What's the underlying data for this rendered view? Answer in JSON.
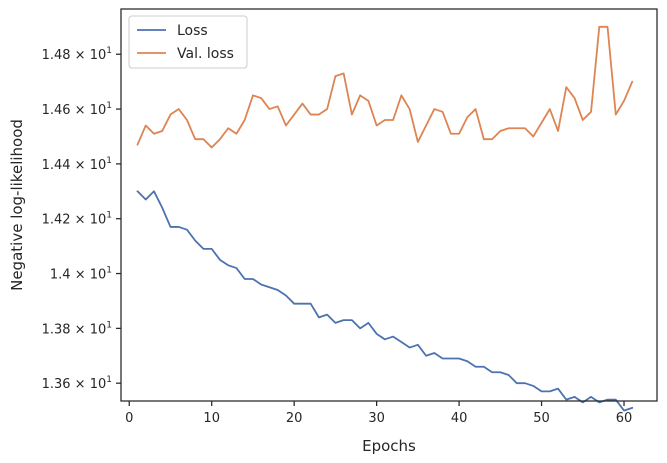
{
  "chart_data": {
    "type": "line",
    "xlabel": "Epochs",
    "ylabel": "Negative log-likelihood",
    "xlim": [
      -1,
      64
    ],
    "ylim": [
      13.535,
      14.965
    ],
    "xticks": [
      {
        "value": 0,
        "label": "0"
      },
      {
        "value": 10,
        "label": "10"
      },
      {
        "value": 20,
        "label": "20"
      },
      {
        "value": 30,
        "label": "30"
      },
      {
        "value": 40,
        "label": "40"
      },
      {
        "value": 50,
        "label": "50"
      },
      {
        "value": 60,
        "label": "60"
      }
    ],
    "yticks": [
      {
        "value": 13.6,
        "mant": "1.36",
        "exp": "1"
      },
      {
        "value": 13.8,
        "mant": "1.38",
        "exp": "1"
      },
      {
        "value": 14.0,
        "mant": "1.4",
        "exp": "1"
      },
      {
        "value": 14.2,
        "mant": "1.42",
        "exp": "1"
      },
      {
        "value": 14.4,
        "mant": "1.44",
        "exp": "1"
      },
      {
        "value": 14.6,
        "mant": "1.46",
        "exp": "1"
      },
      {
        "value": 14.8,
        "mant": "1.48",
        "exp": "1"
      }
    ],
    "grid": false,
    "legend_position": "top-left",
    "x": [
      1,
      2,
      3,
      4,
      5,
      6,
      7,
      8,
      9,
      10,
      11,
      12,
      13,
      14,
      15,
      16,
      17,
      18,
      19,
      20,
      21,
      22,
      23,
      24,
      25,
      26,
      27,
      28,
      29,
      30,
      31,
      32,
      33,
      34,
      35,
      36,
      37,
      38,
      39,
      40,
      41,
      42,
      43,
      44,
      45,
      46,
      47,
      48,
      49,
      50,
      51,
      52,
      53,
      54,
      55,
      56,
      57,
      58,
      59,
      60,
      61
    ],
    "series": [
      {
        "name": "Loss",
        "color": "#4c72b0",
        "values": [
          14.3,
          14.27,
          14.3,
          14.24,
          14.17,
          14.17,
          14.16,
          14.12,
          14.09,
          14.09,
          14.05,
          14.03,
          14.02,
          13.98,
          13.98,
          13.96,
          13.95,
          13.94,
          13.92,
          13.89,
          13.89,
          13.89,
          13.84,
          13.85,
          13.82,
          13.83,
          13.83,
          13.8,
          13.82,
          13.78,
          13.76,
          13.77,
          13.75,
          13.73,
          13.74,
          13.7,
          13.71,
          13.69,
          13.69,
          13.69,
          13.68,
          13.66,
          13.66,
          13.64,
          13.64,
          13.63,
          13.6,
          13.6,
          13.59,
          13.57,
          13.57,
          13.58,
          13.54,
          13.55,
          13.53,
          13.55,
          13.53,
          13.54,
          13.54,
          13.5,
          13.51
        ]
      },
      {
        "name": "Val. loss",
        "color": "#dd8452",
        "values": [
          14.47,
          14.54,
          14.51,
          14.52,
          14.58,
          14.6,
          14.56,
          14.49,
          14.49,
          14.46,
          14.49,
          14.53,
          14.51,
          14.56,
          14.65,
          14.64,
          14.6,
          14.61,
          14.54,
          14.58,
          14.62,
          14.58,
          14.58,
          14.6,
          14.72,
          14.73,
          14.58,
          14.65,
          14.63,
          14.54,
          14.56,
          14.56,
          14.65,
          14.6,
          14.48,
          14.54,
          14.6,
          14.59,
          14.51,
          14.51,
          14.57,
          14.6,
          14.49,
          14.49,
          14.52,
          14.53,
          14.53,
          14.53,
          14.5,
          14.55,
          14.6,
          14.52,
          14.68,
          14.64,
          14.56,
          14.59,
          14.9,
          14.9,
          14.58,
          14.63,
          14.7
        ]
      }
    ]
  }
}
